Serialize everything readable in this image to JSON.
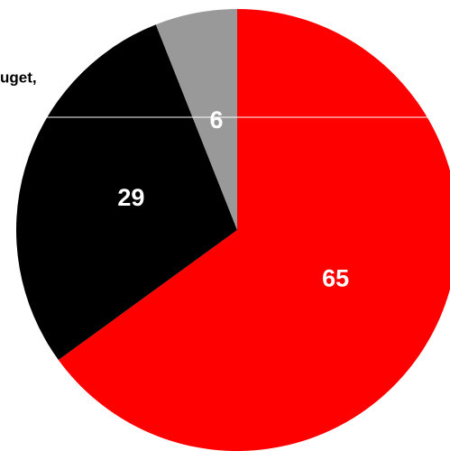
{
  "chart_data": {
    "type": "pie",
    "annotations": [
      "uget,"
    ],
    "values": [
      65,
      29,
      6
    ],
    "colors": [
      "#ff0000",
      "#000000",
      "#999999"
    ],
    "start_angle": 0,
    "direction": "clockwise"
  }
}
